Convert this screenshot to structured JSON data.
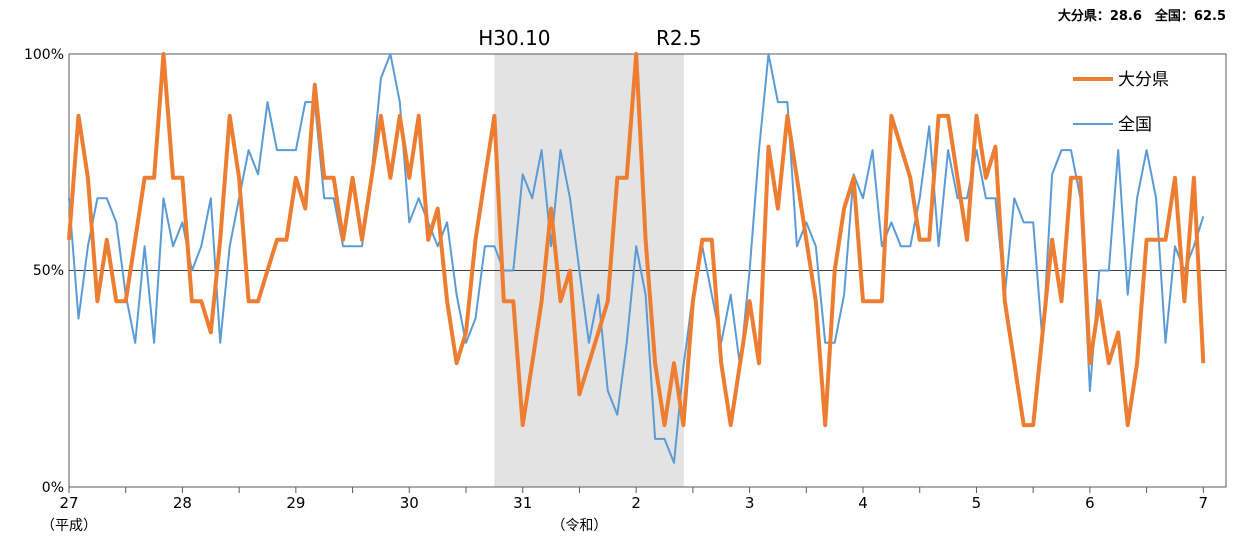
{
  "chart_data": {
    "type": "line",
    "summary_text": "大分県：28.6　全国：62.5",
    "ylim": [
      0,
      100
    ],
    "yticks": [
      "0%",
      "50%",
      "100%"
    ],
    "reference_line": 50,
    "x_range": [
      27,
      37.2
    ],
    "xtick_labels": [
      "27",
      "28",
      "29",
      "30",
      "31",
      "2",
      "3",
      "4",
      "5",
      "6",
      "7"
    ],
    "xtick_values": [
      27,
      28,
      29,
      30,
      31,
      32,
      33,
      34,
      35,
      36,
      37
    ],
    "era_labels": [
      {
        "text": "（平成）",
        "at": 27
      },
      {
        "text": "（令和）",
        "at": 31.5
      }
    ],
    "shaded_band": {
      "from": 30.75,
      "to": 32.42,
      "label_start": "H30.10",
      "label_end": "R2.5"
    },
    "legend_position": "top-right",
    "series": [
      {
        "name": "大分県",
        "color": "#ED7D31",
        "values": [
          57.1,
          85.7,
          71.4,
          42.9,
          57.1,
          42.9,
          42.9,
          57.1,
          71.4,
          71.4,
          100,
          71.4,
          71.4,
          42.9,
          42.9,
          35.7,
          57.1,
          85.7,
          71.4,
          42.9,
          42.9,
          50,
          57.1,
          57.1,
          71.4,
          64.3,
          92.9,
          71.4,
          71.4,
          57.1,
          71.4,
          57.1,
          71.4,
          85.7,
          71.4,
          85.7,
          71.4,
          85.7,
          57.1,
          64.3,
          42.9,
          28.6,
          35.7,
          57.1,
          71.4,
          85.7,
          42.9,
          42.9,
          14.3,
          28.6,
          42.9,
          64.3,
          42.9,
          50,
          21.4,
          28.6,
          35.7,
          42.9,
          71.4,
          71.4,
          100,
          57.1,
          28.6,
          14.3,
          28.6,
          14.3,
          42.9,
          57.1,
          57.1,
          28.6,
          14.3,
          28.6,
          42.9,
          28.6,
          78.6,
          64.3,
          85.7,
          71.4,
          57.1,
          42.9,
          14.3,
          50,
          64.3,
          71.4,
          42.9,
          42.9,
          42.9,
          85.7,
          78.6,
          71.4,
          57.1,
          57.1,
          85.7,
          85.7,
          71.4,
          57.1,
          85.7,
          71.4,
          78.6,
          42.9,
          28.6,
          14.3,
          14.3,
          35.7,
          57.1,
          42.9,
          71.4,
          71.4,
          28.6,
          42.9,
          28.6,
          35.7,
          14.3,
          28.6,
          57.1,
          57.1,
          57.1,
          71.4,
          42.9,
          71.4,
          28.6
        ]
      },
      {
        "name": "全国",
        "color": "#5B9BD5",
        "values": [
          66.7,
          38.9,
          55.6,
          66.7,
          66.7,
          61.1,
          44.4,
          33.3,
          55.6,
          33.3,
          66.7,
          55.6,
          61.1,
          50,
          55.6,
          66.7,
          33.3,
          55.6,
          66.7,
          77.8,
          72.2,
          88.9,
          77.8,
          77.8,
          77.8,
          88.9,
          88.9,
          66.7,
          66.7,
          55.6,
          55.6,
          55.6,
          72.2,
          94.4,
          100,
          88.9,
          61.1,
          66.7,
          61.1,
          55.6,
          61.1,
          44.4,
          33.3,
          38.9,
          55.6,
          55.6,
          50,
          50,
          72.2,
          66.7,
          77.8,
          55.6,
          77.8,
          66.7,
          50,
          33.3,
          44.4,
          22.2,
          16.7,
          33.3,
          55.6,
          44.4,
          11.1,
          11.1,
          5.6,
          27.8,
          44.4,
          55.6,
          44.4,
          33.3,
          44.4,
          27.8,
          50,
          77.8,
          100,
          88.9,
          88.9,
          55.6,
          61.1,
          55.6,
          33.3,
          33.3,
          44.4,
          72.2,
          66.7,
          77.8,
          55.6,
          61.1,
          55.6,
          55.6,
          66.7,
          83.3,
          55.6,
          77.8,
          66.7,
          66.7,
          77.8,
          66.7,
          66.7,
          44.4,
          66.7,
          61.1,
          61.1,
          33.3,
          72.2,
          77.8,
          77.8,
          66.7,
          22.2,
          50,
          50,
          77.8,
          44.4,
          66.7,
          77.8,
          66.7,
          33.3,
          55.6,
          50,
          55.6,
          62.5
        ]
      }
    ]
  }
}
